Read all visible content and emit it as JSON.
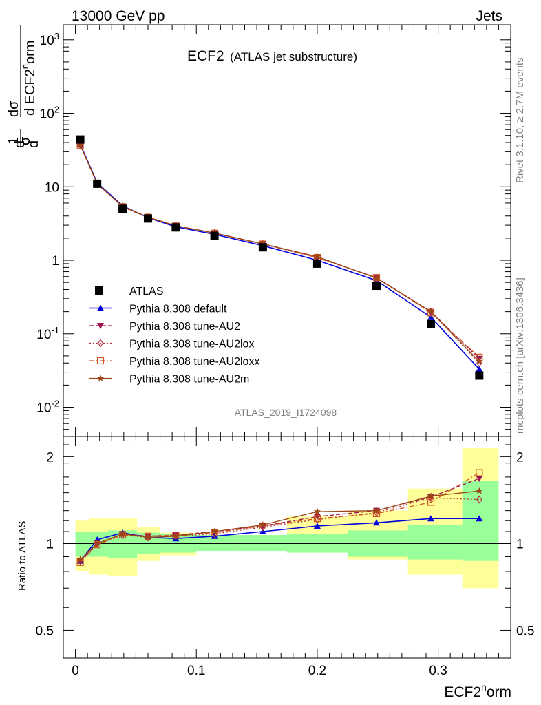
{
  "header": {
    "left": "13000 GeV pp",
    "right": "Jets"
  },
  "title": {
    "main": "ECF2",
    "sub": "(ATLAS jet substructure)"
  },
  "analysis_id": "ATLAS_2019_I1724098",
  "side_labels": {
    "rivet": "Rivet 3.1.10, ≥ 2.7M events",
    "mcplots": "mcplots.cern.ch [arXiv:1306.3436]"
  },
  "upper_ylabel": "1/σ dσ/d ECF2^norm",
  "ratio_ylabel": "Ratio to ATLAS",
  "xlabel": "ECF2^norm",
  "upper_yticks": [
    "10^-2",
    "10^-1",
    "1",
    "10",
    "10^2",
    "10^3"
  ],
  "ratio_yticks": [
    "0.5",
    "1",
    "2"
  ],
  "xticks": [
    "0",
    "0.1",
    "0.2",
    "0.3"
  ],
  "legend": [
    "ATLAS",
    "Pythia 8.308 default",
    "Pythia 8.308 tune-AU2",
    "Pythia 8.308 tune-AU2lox",
    "Pythia 8.308 tune-AU2loxx",
    "Pythia 8.308 tune-AU2m"
  ],
  "colors": {
    "atlas": "#000000",
    "default": "#0000dd",
    "au2": "#9b1450",
    "au2lox": "#b0303c",
    "au2loxx": "#d2561e",
    "au2m": "#9b4614",
    "band_inner": "#99ff99",
    "band_outer": "#ffff99"
  },
  "chart_data": {
    "type": "line",
    "x": [
      0.004,
      0.018,
      0.039,
      0.06,
      0.083,
      0.115,
      0.155,
      0.2,
      0.249,
      0.294,
      0.334
    ],
    "xlim": [
      -0.01,
      0.36
    ],
    "upper": {
      "yscale": "log",
      "ylim": [
        0.004,
        1600
      ],
      "series": [
        {
          "name": "ATLAS",
          "values": [
            44,
            11,
            5,
            3.7,
            2.8,
            2.15,
            1.5,
            0.9,
            0.45,
            0.135,
            0.027
          ]
        },
        {
          "name": "Pythia 8.308 default",
          "values": [
            38,
            11.3,
            5.5,
            3.8,
            2.85,
            2.25,
            1.58,
            1.0,
            0.53,
            0.168,
            0.033
          ]
        },
        {
          "name": "Pythia 8.308 tune-AU2",
          "values": [
            37,
            11,
            5.4,
            3.85,
            2.95,
            2.35,
            1.67,
            1.1,
            0.58,
            0.2,
            0.046
          ]
        },
        {
          "name": "Pythia 8.308 tune-AU2lox",
          "values": [
            37,
            10.9,
            5.3,
            3.8,
            2.95,
            2.33,
            1.66,
            1.08,
            0.58,
            0.2,
            0.04
          ]
        },
        {
          "name": "Pythia 8.308 tune-AU2loxx",
          "values": [
            36.5,
            10.9,
            5.35,
            3.85,
            2.97,
            2.33,
            1.66,
            1.09,
            0.58,
            0.193,
            0.048
          ]
        },
        {
          "name": "Pythia 8.308 tune-AU2m",
          "values": [
            37,
            11,
            5.4,
            3.85,
            2.95,
            2.35,
            1.67,
            1.12,
            0.57,
            0.2,
            0.042
          ]
        }
      ]
    },
    "ratio": {
      "yscale": "log",
      "ylim": [
        0.4,
        2.35
      ],
      "bands": {
        "edges": [
          0,
          0.011,
          0.027,
          0.051,
          0.07,
          0.1,
          0.135,
          0.175,
          0.225,
          0.275,
          0.32,
          0.35
        ],
        "inner_lo": [
          0.9,
          0.9,
          0.89,
          0.92,
          0.93,
          0.94,
          0.94,
          0.93,
          0.9,
          0.88,
          0.87
        ],
        "inner_hi": [
          1.1,
          1.1,
          1.11,
          1.09,
          1.08,
          1.07,
          1.07,
          1.08,
          1.11,
          1.16,
          1.65
        ],
        "outer_lo": [
          0.8,
          0.78,
          0.77,
          0.87,
          0.91,
          0.94,
          0.95,
          0.93,
          0.88,
          0.78,
          0.7
        ],
        "outer_hi": [
          1.2,
          1.22,
          1.22,
          1.14,
          1.09,
          1.07,
          1.07,
          1.24,
          1.3,
          1.55,
          2.15
        ]
      },
      "series": [
        {
          "name": "Pythia 8.308 default",
          "values": [
            0.87,
            1.03,
            1.09,
            1.05,
            1.04,
            1.06,
            1.1,
            1.15,
            1.18,
            1.22,
            1.22
          ]
        },
        {
          "name": "Pythia 8.308 tune-AU2",
          "values": [
            0.87,
            1.0,
            1.08,
            1.06,
            1.07,
            1.1,
            1.15,
            1.24,
            1.3,
            1.45,
            1.68
          ]
        },
        {
          "name": "Pythia 8.308 tune-AU2lox",
          "values": [
            0.87,
            1.0,
            1.07,
            1.05,
            1.06,
            1.08,
            1.14,
            1.21,
            1.28,
            1.44,
            1.42
          ]
        },
        {
          "name": "Pythia 8.308 tune-AU2loxx",
          "values": [
            0.86,
            0.99,
            1.07,
            1.06,
            1.07,
            1.09,
            1.15,
            1.22,
            1.27,
            1.39,
            1.76
          ]
        },
        {
          "name": "Pythia 8.308 tune-AU2m",
          "values": [
            0.88,
            1.0,
            1.08,
            1.05,
            1.06,
            1.1,
            1.16,
            1.29,
            1.3,
            1.46,
            1.52
          ]
        }
      ]
    }
  }
}
